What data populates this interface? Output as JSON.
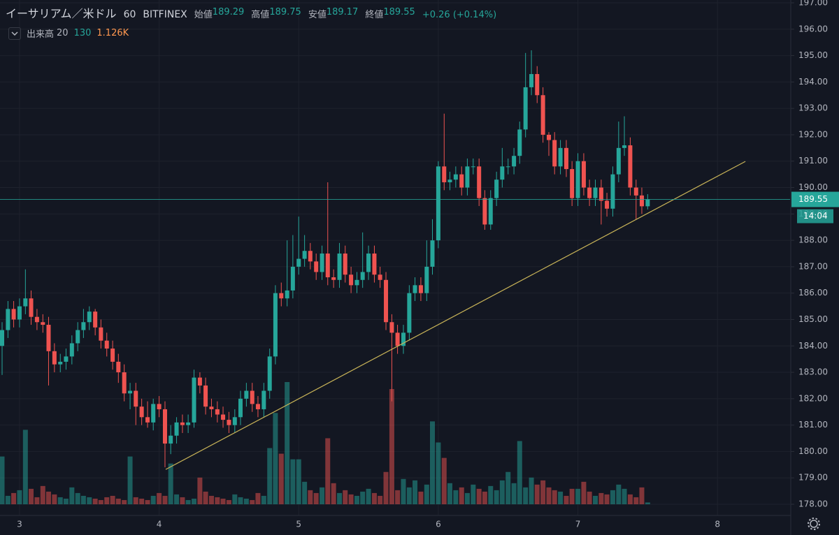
{
  "chart_data": {
    "type": "candlestick",
    "title": "イーサリアム／米ドル",
    "interval": "60",
    "exchange": "BITFINEX",
    "ohlc_legend": [
      {
        "label": "始値",
        "value": 189.29
      },
      {
        "label": "高値",
        "value": 189.75
      },
      {
        "label": "安値",
        "value": 189.17
      },
      {
        "label": "終値",
        "value": 189.55
      }
    ],
    "change_label": "+0.26 (+0.14%)",
    "volume_label": "出来高",
    "volume_length": 20,
    "volume_ma_label": "1.126K",
    "countdown": "14:04",
    "up_color": "#26a69a",
    "down_color": "#ef5350",
    "trendline_color": "#c9b458",
    "xlim": [
      2.86,
      8.52
    ],
    "xticks": [
      3,
      4,
      5,
      6,
      7,
      8
    ],
    "ylim": [
      178,
      197
    ],
    "yticks": [
      {
        "value": 178,
        "label": "178.00"
      },
      {
        "value": 179,
        "label": "179.00"
      },
      {
        "value": 180,
        "label": "180.00"
      },
      {
        "value": 181,
        "label": "181.00"
      },
      {
        "value": 182,
        "label": "182.00"
      },
      {
        "value": 183,
        "label": "183.00"
      },
      {
        "value": 184,
        "label": "184.00"
      },
      {
        "value": 185,
        "label": "185.00"
      },
      {
        "value": 186,
        "label": "186.00"
      },
      {
        "value": 187,
        "label": "187.00"
      },
      {
        "value": 188,
        "label": "188.00"
      },
      {
        "value": 189,
        "label": "189.00"
      },
      {
        "value": 190,
        "label": "190.00"
      },
      {
        "value": 191,
        "label": "191.00"
      },
      {
        "value": 192,
        "label": "192.00"
      },
      {
        "value": 193,
        "label": "193.00"
      },
      {
        "value": 194,
        "label": "194.00"
      },
      {
        "value": 195,
        "label": "195.00"
      },
      {
        "value": 196,
        "label": "196.00"
      },
      {
        "value": 197,
        "label": "197.00"
      }
    ],
    "grid": true,
    "x": [
      2.875,
      2.917,
      2.958,
      3.0,
      3.042,
      3.083,
      3.125,
      3.167,
      3.208,
      3.25,
      3.292,
      3.333,
      3.375,
      3.417,
      3.458,
      3.5,
      3.542,
      3.583,
      3.625,
      3.667,
      3.708,
      3.75,
      3.792,
      3.833,
      3.875,
      3.917,
      3.958,
      4.0,
      4.042,
      4.083,
      4.125,
      4.167,
      4.208,
      4.25,
      4.292,
      4.333,
      4.375,
      4.417,
      4.458,
      4.5,
      4.542,
      4.583,
      4.625,
      4.667,
      4.708,
      4.75,
      4.792,
      4.833,
      4.875,
      4.917,
      4.958,
      5.0,
      5.042,
      5.083,
      5.125,
      5.167,
      5.208,
      5.25,
      5.292,
      5.333,
      5.375,
      5.417,
      5.458,
      5.5,
      5.542,
      5.583,
      5.625,
      5.667,
      5.708,
      5.75,
      5.792,
      5.833,
      5.875,
      5.917,
      5.958,
      6.0,
      6.042,
      6.083,
      6.125,
      6.167,
      6.208,
      6.25,
      6.292,
      6.333,
      6.375,
      6.417,
      6.458,
      6.5,
      6.542,
      6.583,
      6.625,
      6.667,
      6.708,
      6.75,
      6.792,
      6.833,
      6.875,
      6.917,
      6.958,
      7.0,
      7.042,
      7.083,
      7.125,
      7.167,
      7.208,
      7.25,
      7.292,
      7.333,
      7.375,
      7.417,
      7.458,
      7.5
    ],
    "open": [
      184.0,
      184.6,
      185.4,
      185.0,
      185.5,
      185.8,
      185.1,
      184.9,
      184.8,
      183.8,
      183.3,
      183.4,
      183.6,
      184.1,
      184.6,
      184.9,
      185.3,
      184.7,
      184.2,
      183.9,
      183.4,
      183.0,
      182.2,
      182.3,
      181.7,
      181.3,
      181.1,
      181.8,
      181.6,
      180.3,
      180.6,
      181.1,
      181.0,
      181.1,
      182.8,
      182.5,
      181.7,
      181.6,
      181.4,
      181.2,
      181.0,
      181.3,
      182.0,
      182.3,
      181.8,
      181.6,
      182.3,
      183.6,
      186.0,
      185.8,
      186.1,
      187.0,
      187.3,
      187.6,
      187.2,
      186.8,
      187.5,
      186.6,
      186.5,
      187.5,
      186.7,
      186.3,
      186.5,
      186.8,
      187.5,
      186.7,
      186.5,
      184.9,
      184.5,
      184.0,
      184.5,
      186.0,
      186.3,
      186.0,
      187.0,
      188.0,
      190.8,
      190.2,
      190.3,
      190.5,
      190.0,
      190.8,
      190.8,
      189.6,
      188.6,
      189.6,
      190.3,
      190.8,
      190.8,
      191.2,
      192.2,
      193.8,
      194.3,
      193.5,
      192.0,
      191.8,
      190.8,
      191.5,
      190.7,
      189.6,
      191.0,
      190.0,
      189.6,
      190.0,
      189.5,
      189.2,
      190.5,
      191.5,
      191.6,
      190.0,
      189.7,
      189.29
    ],
    "high": [
      184.9,
      185.7,
      185.7,
      185.8,
      186.9,
      186.1,
      185.4,
      185.2,
      185.1,
      184.1,
      183.7,
      183.9,
      184.4,
      184.9,
      185.4,
      185.5,
      185.4,
      185.0,
      184.5,
      184.2,
      183.7,
      183.3,
      182.6,
      182.6,
      182.0,
      181.9,
      182.0,
      182.1,
      181.9,
      181.0,
      181.3,
      181.4,
      181.4,
      183.1,
      183.0,
      182.8,
      182.0,
      181.9,
      181.7,
      181.5,
      181.6,
      182.3,
      182.6,
      182.6,
      182.1,
      182.6,
      183.9,
      186.3,
      186.4,
      188.0,
      188.2,
      188.9,
      188.2,
      187.9,
      187.5,
      187.8,
      190.2,
      186.9,
      187.9,
      187.8,
      187.0,
      186.8,
      188.3,
      187.8,
      187.8,
      187.0,
      186.8,
      185.2,
      184.8,
      184.8,
      186.3,
      186.6,
      186.6,
      188.0,
      188.8,
      191.0,
      192.8,
      190.6,
      190.8,
      190.8,
      191.1,
      191.1,
      191.1,
      189.9,
      189.9,
      190.6,
      191.5,
      191.1,
      191.5,
      192.5,
      195.1,
      195.2,
      194.6,
      193.8,
      192.1,
      192.1,
      191.8,
      191.8,
      191.0,
      191.3,
      191.3,
      190.3,
      190.3,
      190.3,
      189.8,
      190.8,
      192.5,
      192.7,
      191.9,
      190.3,
      190.0,
      189.75
    ],
    "low": [
      182.9,
      184.3,
      184.7,
      184.7,
      185.2,
      184.8,
      184.6,
      184.5,
      182.5,
      183.0,
      183.0,
      183.1,
      183.3,
      183.8,
      184.3,
      184.6,
      184.4,
      183.9,
      183.6,
      183.1,
      182.6,
      181.9,
      181.6,
      181.0,
      181.0,
      180.9,
      180.8,
      181.3,
      179.4,
      179.9,
      180.3,
      180.7,
      180.7,
      180.9,
      182.2,
      181.4,
      181.3,
      181.1,
      180.9,
      180.7,
      180.7,
      181.0,
      181.7,
      181.5,
      181.3,
      181.3,
      182.0,
      183.3,
      185.5,
      185.5,
      185.8,
      186.7,
      187.0,
      186.9,
      186.5,
      186.5,
      186.3,
      186.2,
      186.2,
      186.4,
      186.0,
      186.0,
      186.2,
      186.5,
      186.4,
      186.2,
      184.6,
      181.9,
      183.7,
      183.7,
      184.2,
      185.7,
      185.7,
      185.7,
      186.7,
      187.7,
      189.9,
      189.9,
      190.0,
      189.7,
      189.7,
      190.5,
      189.3,
      188.4,
      188.4,
      189.3,
      190.0,
      190.5,
      190.5,
      190.9,
      191.9,
      193.5,
      193.2,
      191.7,
      191.2,
      190.5,
      190.5,
      190.4,
      189.3,
      189.3,
      189.7,
      189.3,
      189.3,
      188.6,
      188.9,
      188.9,
      190.2,
      191.2,
      189.7,
      188.8,
      189.0,
      189.17
    ],
    "close": [
      184.6,
      185.4,
      185.0,
      185.5,
      185.8,
      185.1,
      184.9,
      184.8,
      183.8,
      183.3,
      183.4,
      183.6,
      184.1,
      184.6,
      184.9,
      185.3,
      184.7,
      184.2,
      183.9,
      183.4,
      183.0,
      182.2,
      182.3,
      181.7,
      181.3,
      181.1,
      181.8,
      181.6,
      180.3,
      180.6,
      181.1,
      181.0,
      181.1,
      182.8,
      182.5,
      181.7,
      181.6,
      181.4,
      181.2,
      181.0,
      181.3,
      182.0,
      182.3,
      181.8,
      181.6,
      182.3,
      183.6,
      186.0,
      185.8,
      186.1,
      187.0,
      187.3,
      187.6,
      187.2,
      186.8,
      187.5,
      186.6,
      186.5,
      187.5,
      186.7,
      186.3,
      186.5,
      186.8,
      187.5,
      186.7,
      186.5,
      184.9,
      184.5,
      184.0,
      184.5,
      186.0,
      186.3,
      186.0,
      187.0,
      188.0,
      190.8,
      190.2,
      190.3,
      190.5,
      190.0,
      190.8,
      190.8,
      189.6,
      188.6,
      189.6,
      190.3,
      190.8,
      190.8,
      191.2,
      192.2,
      193.8,
      194.3,
      193.5,
      192.0,
      191.8,
      190.8,
      191.5,
      190.7,
      189.6,
      191.0,
      190.0,
      189.6,
      190.0,
      189.5,
      189.2,
      190.5,
      191.5,
      191.6,
      190.0,
      189.7,
      189.29,
      189.55
    ],
    "volume": [
      3400,
      600,
      800,
      1000,
      5300,
      1100,
      500,
      1300,
      900,
      700,
      500,
      400,
      1200,
      800,
      600,
      500,
      400,
      300,
      500,
      600,
      400,
      300,
      3400,
      500,
      400,
      300,
      600,
      800,
      600,
      2900,
      700,
      500,
      300,
      400,
      1900,
      900,
      600,
      500,
      400,
      300,
      700,
      500,
      400,
      300,
      800,
      600,
      4000,
      6500,
      3600,
      8700,
      3200,
      3200,
      1600,
      1000,
      800,
      1200,
      4700,
      1500,
      800,
      1000,
      700,
      600,
      900,
      1100,
      800,
      600,
      2300,
      8200,
      1000,
      1800,
      1200,
      1700,
      900,
      1400,
      5900,
      4400,
      3300,
      1500,
      1000,
      1200,
      800,
      1400,
      1100,
      900,
      1300,
      1000,
      1700,
      2300,
      1500,
      4500,
      1200,
      1900,
      1400,
      1700,
      1200,
      1000,
      900,
      600,
      1100,
      1100,
      1600,
      900,
      600,
      800,
      700,
      1000,
      1400,
      1100,
      700,
      500,
      1200,
      130
    ],
    "trendline": {
      "x": [
        4.047,
        8.2
      ],
      "y": [
        179.32,
        190.99
      ]
    }
  }
}
